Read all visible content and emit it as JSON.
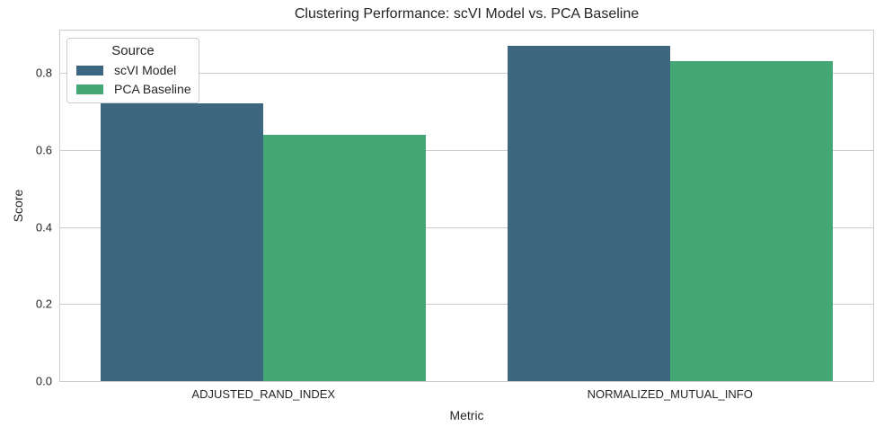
{
  "figure": {
    "background_color": "#ffffff",
    "text_color": "#262626",
    "grid_color": "#cccccc"
  },
  "legend": {
    "title": "Source",
    "position": "upper-left"
  },
  "chart_data": {
    "type": "bar",
    "title": "Clustering Performance: scVI Model vs. PCA Baseline",
    "xlabel": "Metric",
    "ylabel": "Score",
    "categories": [
      "ADJUSTED_RAND_INDEX",
      "NORMALIZED_MUTUAL_INFO"
    ],
    "series": [
      {
        "name": "scVI Model",
        "color": "#3D6781",
        "values": [
          0.72,
          0.87
        ]
      },
      {
        "name": "PCA Baseline",
        "color": "#45A775",
        "values": [
          0.64,
          0.83
        ]
      }
    ],
    "ylim": [
      0,
      0.91
    ],
    "yticks": [
      0.0,
      0.2,
      0.4,
      0.6,
      0.8
    ],
    "grid": true,
    "group_width_fraction": 0.8,
    "legend_position": "upper left"
  }
}
